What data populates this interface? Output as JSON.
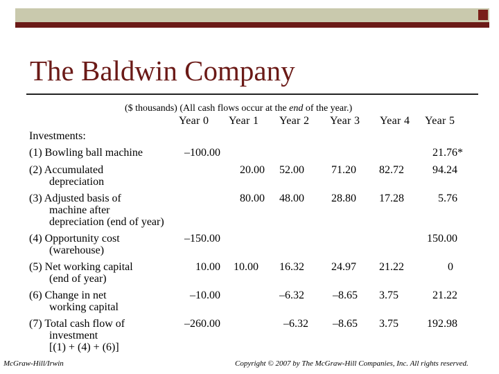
{
  "slide": {
    "title": "The Baldwin Company",
    "subtitle_pre": "($ thousands)  (All cash flows occur at the ",
    "subtitle_em": "end",
    "subtitle_post": " of the year.)",
    "years": [
      "Year 0",
      "Year 1",
      "Year 2",
      "Year 3",
      "Year 4",
      "Year 5"
    ],
    "section": "Investments:",
    "rows": [
      {
        "label": [
          "(1) Bowling ball machine"
        ],
        "y0": "–100.00",
        "y1": "",
        "y2": "",
        "y3": "",
        "y4": "",
        "y5": "21.76*"
      },
      {
        "label": [
          "(2) Accumulated",
          "depreciation"
        ],
        "y0": "",
        "y1": "20.00",
        "y2": "52.00",
        "y3": "71.20",
        "y4": "82.72",
        "y5": "94.24"
      },
      {
        "label": [
          "(3) Adjusted basis of",
          "machine after",
          "depreciation (end of year)"
        ],
        "y0": "",
        "y1": "80.00",
        "y2": "48.00",
        "y3": "28.80",
        "y4": "17.28",
        "y5": "5.76"
      },
      {
        "label": [
          "(4) Opportunity cost",
          "(warehouse)"
        ],
        "y0": "–150.00",
        "y1": "",
        "y2": "",
        "y3": "",
        "y4": "",
        "y5": "150.00"
      },
      {
        "label": [
          "(5) Net working capital",
          "(end of year)"
        ],
        "y0": "10.00",
        "y1": "10.00",
        "y2": "16.32",
        "y3": "24.97",
        "y4": "21.22",
        "y5": "0"
      },
      {
        "label": [
          "(6) Change in net",
          "working capital"
        ],
        "y0": "–10.00",
        "y1": "",
        "y2": "–6.32",
        "y3": "–8.65",
        "y4": "3.75",
        "y5": "21.22"
      },
      {
        "label": [
          "(7) Total cash flow of",
          "investment",
          "[(1) + (4) + (6)]"
        ],
        "y0": "–260.00",
        "y1": "",
        "y2": "–6.32",
        "y3": "–8.65",
        "y4": "3.75",
        "y5": "192.98"
      }
    ]
  },
  "footer": {
    "left": "McGraw-Hill/Irwin",
    "right": "Copyright © 2007 by The McGraw-Hill Companies, Inc. All rights reserved."
  }
}
